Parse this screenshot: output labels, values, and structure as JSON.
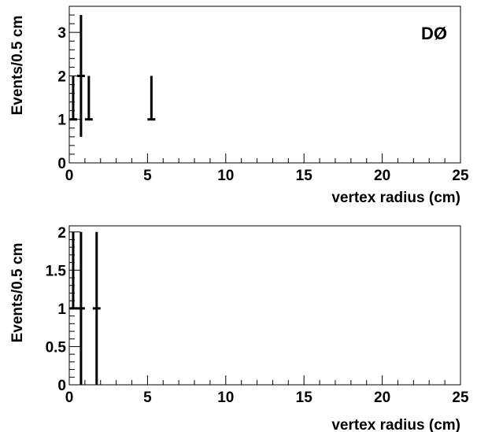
{
  "chart_data": [
    {
      "type": "scatter",
      "xlabel": "vertex radius (cm)",
      "ylabel": "Events/0.5 cm",
      "annotation": "DØ",
      "xlim": [
        0,
        25
      ],
      "ylim": [
        0,
        3.6
      ],
      "x_ticks": [
        0,
        5,
        10,
        15,
        20,
        25
      ],
      "y_ticks": [
        0,
        1,
        2,
        3
      ],
      "y_tick_labels": [
        "0",
        "1",
        "2",
        "3"
      ],
      "grid": false,
      "points": [
        {
          "x": 0.25,
          "y": 1,
          "err_low": 0,
          "err_high": 1
        },
        {
          "x": 0.75,
          "y": 2,
          "err_low": 1.4,
          "err_high": 1.4
        },
        {
          "x": 1.25,
          "y": 1,
          "err_low": 0,
          "err_high": 1
        },
        {
          "x": 5.25,
          "y": 1,
          "err_low": 0,
          "err_high": 1
        }
      ]
    },
    {
      "type": "scatter",
      "xlabel": "vertex radius (cm)",
      "ylabel": "Events/0.5 cm",
      "xlim": [
        0,
        25
      ],
      "ylim": [
        0,
        2.08
      ],
      "x_ticks": [
        0,
        5,
        10,
        15,
        20,
        25
      ],
      "y_ticks": [
        0,
        0.5,
        1,
        1.5,
        2
      ],
      "y_tick_labels": [
        "0",
        "0.5",
        "1",
        "1.5",
        "2"
      ],
      "grid": false,
      "points": [
        {
          "x": 0.25,
          "y": 1,
          "err_low": 0,
          "err_high": 1
        },
        {
          "x": 0.75,
          "y": 1,
          "err_low": 1,
          "err_high": 1
        },
        {
          "x": 1.75,
          "y": 1,
          "err_low": 1,
          "err_high": 1
        }
      ]
    }
  ]
}
